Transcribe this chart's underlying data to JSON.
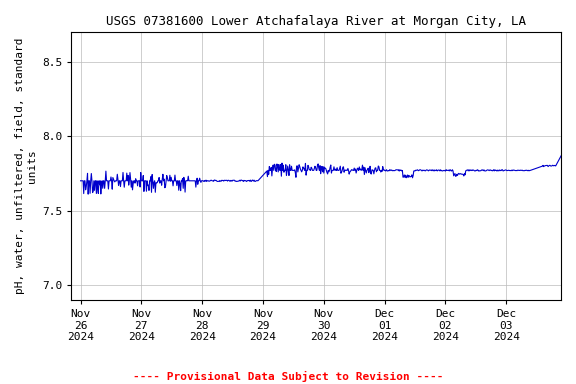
{
  "title": "USGS 07381600 Lower Atchafalaya River at Morgan City, LA",
  "ylabel": "pH, water, unfiltered, field, standard\nunits",
  "line_color": "#0000CC",
  "line_width": 0.8,
  "bg_color": "#ffffff",
  "plot_bg_color": "#ffffff",
  "grid_color": "#bbbbbb",
  "provisional_text": "---- Provisional Data Subject to Revision ----",
  "provisional_color": "#ff0000",
  "ylim": [
    6.9,
    8.7
  ],
  "yticks": [
    7.0,
    7.5,
    8.0,
    8.5
  ],
  "xtick_labels": [
    "Nov\n26\n2024",
    "Nov\n27\n2024",
    "Nov\n28\n2024",
    "Nov\n29\n2024",
    "Nov\n30\n2024",
    "Dec\n01\n2024",
    "Dec\n02\n2024",
    "Dec\n03\n2024"
  ],
  "title_fontsize": 9,
  "tick_fontsize": 8,
  "ylabel_fontsize": 8,
  "prov_fontsize": 8
}
